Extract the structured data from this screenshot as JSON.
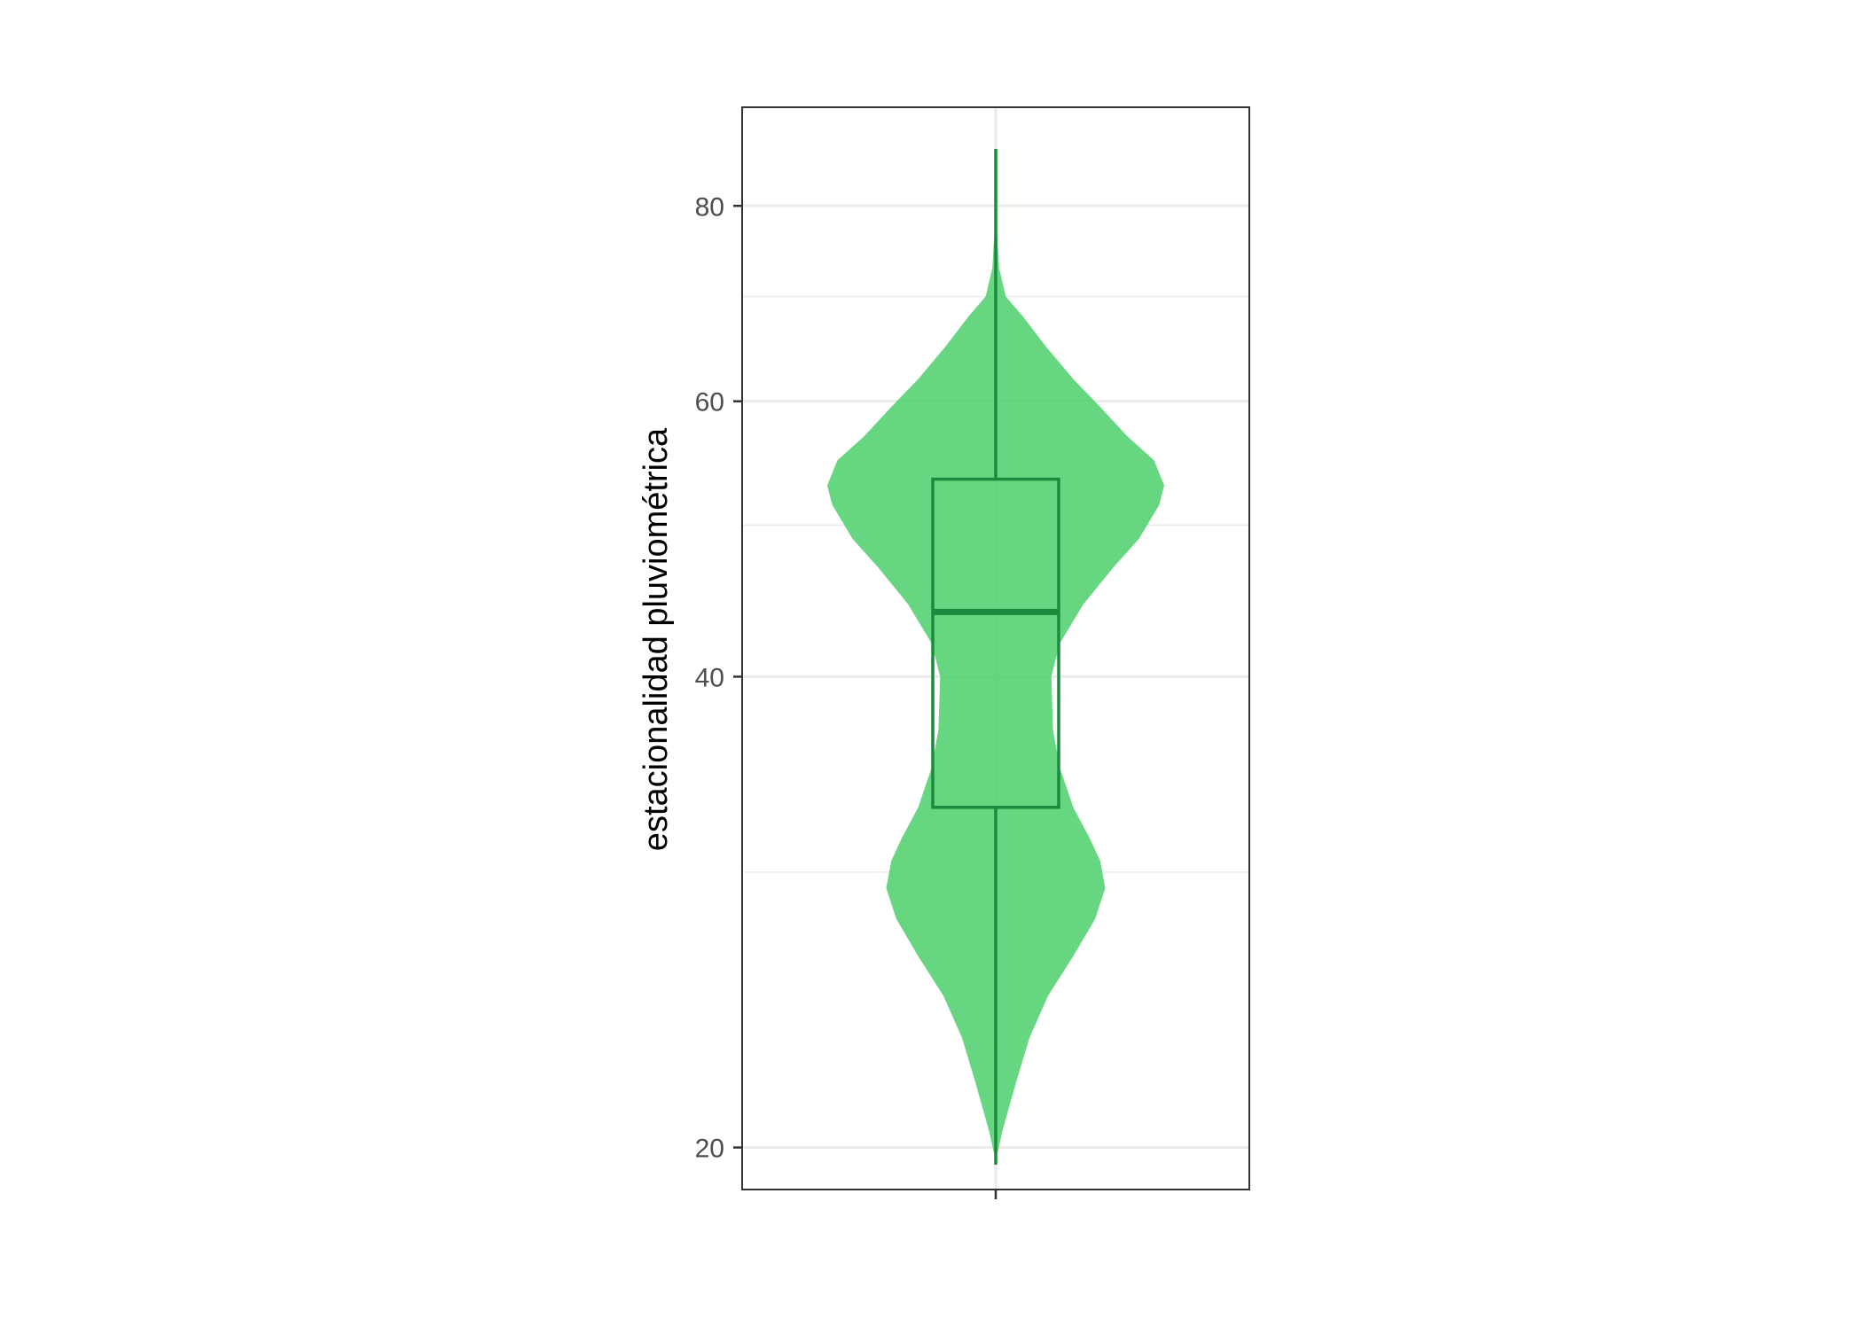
{
  "chart_data": {
    "type": "violin",
    "ylabel": "estacionalidad pluviométrica",
    "xlabel": "",
    "y_scale": "log10",
    "ylim": [
      18.8,
      92.5
    ],
    "yticks": [
      20,
      40,
      60,
      80
    ],
    "ytick_labels": [
      "20",
      "40",
      "60",
      "80"
    ],
    "minor_gridlines": [
      30,
      50,
      70
    ],
    "grid": true,
    "legend": "none",
    "colors": {
      "fill": "#4ccf6b",
      "outline": "#1b8a3c",
      "grid": "#ebebeb",
      "panel_border": "#333333",
      "tick_text": "#4d4d4d"
    },
    "box": {
      "min": 19.5,
      "q1": 33.0,
      "median": 44.0,
      "q3": 53.5,
      "max": 87.0
    },
    "density": [
      {
        "y": 19.6,
        "w": 0.0
      },
      {
        "y": 20.5,
        "w": 0.04
      },
      {
        "y": 22.0,
        "w": 0.12
      },
      {
        "y": 23.5,
        "w": 0.2
      },
      {
        "y": 25.0,
        "w": 0.31
      },
      {
        "y": 26.5,
        "w": 0.46
      },
      {
        "y": 28.0,
        "w": 0.59
      },
      {
        "y": 29.3,
        "w": 0.65
      },
      {
        "y": 30.5,
        "w": 0.62
      },
      {
        "y": 31.5,
        "w": 0.56
      },
      {
        "y": 33.0,
        "w": 0.46
      },
      {
        "y": 35.0,
        "w": 0.38
      },
      {
        "y": 37.0,
        "w": 0.34
      },
      {
        "y": 40.0,
        "w": 0.33
      },
      {
        "y": 42.0,
        "w": 0.38
      },
      {
        "y": 44.5,
        "w": 0.52
      },
      {
        "y": 47.0,
        "w": 0.7
      },
      {
        "y": 49.0,
        "w": 0.85
      },
      {
        "y": 51.5,
        "w": 0.97
      },
      {
        "y": 53.0,
        "w": 1.0
      },
      {
        "y": 55.0,
        "w": 0.94
      },
      {
        "y": 57.0,
        "w": 0.78
      },
      {
        "y": 59.5,
        "w": 0.62
      },
      {
        "y": 62.0,
        "w": 0.46
      },
      {
        "y": 65.0,
        "w": 0.3
      },
      {
        "y": 68.0,
        "w": 0.16
      },
      {
        "y": 70.0,
        "w": 0.06
      },
      {
        "y": 73.0,
        "w": 0.02
      },
      {
        "y": 78.0,
        "w": 0.005
      },
      {
        "y": 87.0,
        "w": 0.0
      }
    ]
  }
}
